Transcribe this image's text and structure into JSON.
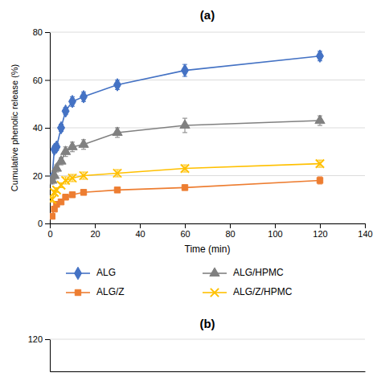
{
  "chart_data": [
    {
      "type": "line",
      "title": "(a)",
      "xlabel": "Time (min)",
      "ylabel": "Cumulative phenolic release (%)",
      "x": [
        1,
        2,
        3,
        5,
        7,
        10,
        15,
        30,
        60,
        120
      ],
      "xlim": [
        0,
        140
      ],
      "xticks": [
        0,
        20,
        40,
        60,
        80,
        100,
        120,
        140
      ],
      "ylim": [
        0,
        80
      ],
      "yticks": [
        0,
        20,
        40,
        60,
        80
      ],
      "grid": true,
      "legend": "bottom",
      "series": [
        {
          "name": "ALG",
          "color": "#4472C4",
          "marker": "diamond",
          "values": [
            19,
            31,
            32,
            40,
            47,
            51,
            53,
            58,
            64,
            70
          ],
          "yerr": [
            1.5,
            1.5,
            1.5,
            1.5,
            1.5,
            2.0,
            2.0,
            2.0,
            2.5,
            2.0
          ]
        },
        {
          "name": "ALG/Z",
          "color": "#ED7D31",
          "marker": "square",
          "values": [
            3,
            6,
            8,
            9,
            11,
            12,
            13,
            14,
            15,
            18
          ],
          "yerr": [
            0.8,
            0.8,
            0.8,
            0.8,
            1.0,
            1.0,
            1.0,
            1.0,
            1.0,
            1.5
          ]
        },
        {
          "name": "ALG/HPMC",
          "color": "#808080",
          "marker": "triangle",
          "values": [
            18,
            20,
            23,
            26,
            30,
            32,
            33,
            38,
            41,
            43
          ],
          "yerr": [
            1.5,
            1.5,
            1.5,
            1.5,
            2.0,
            2.0,
            2.0,
            2.0,
            3.0,
            2.0
          ]
        },
        {
          "name": "ALG/Z/HPMC",
          "color": "#FFC000",
          "marker": "x",
          "values": [
            10,
            13,
            14,
            16,
            18,
            19,
            20,
            21,
            23,
            25
          ],
          "yerr": [
            1.0,
            1.0,
            1.0,
            1.0,
            1.5,
            1.5,
            1.5,
            1.5,
            1.5,
            1.5
          ]
        }
      ]
    },
    {
      "type": "line",
      "title": "(b)",
      "xlim": [
        0,
        140
      ],
      "ylim": [
        0,
        120
      ],
      "yticks": [
        120
      ],
      "grid": true,
      "tick_labels": "y"
    }
  ]
}
